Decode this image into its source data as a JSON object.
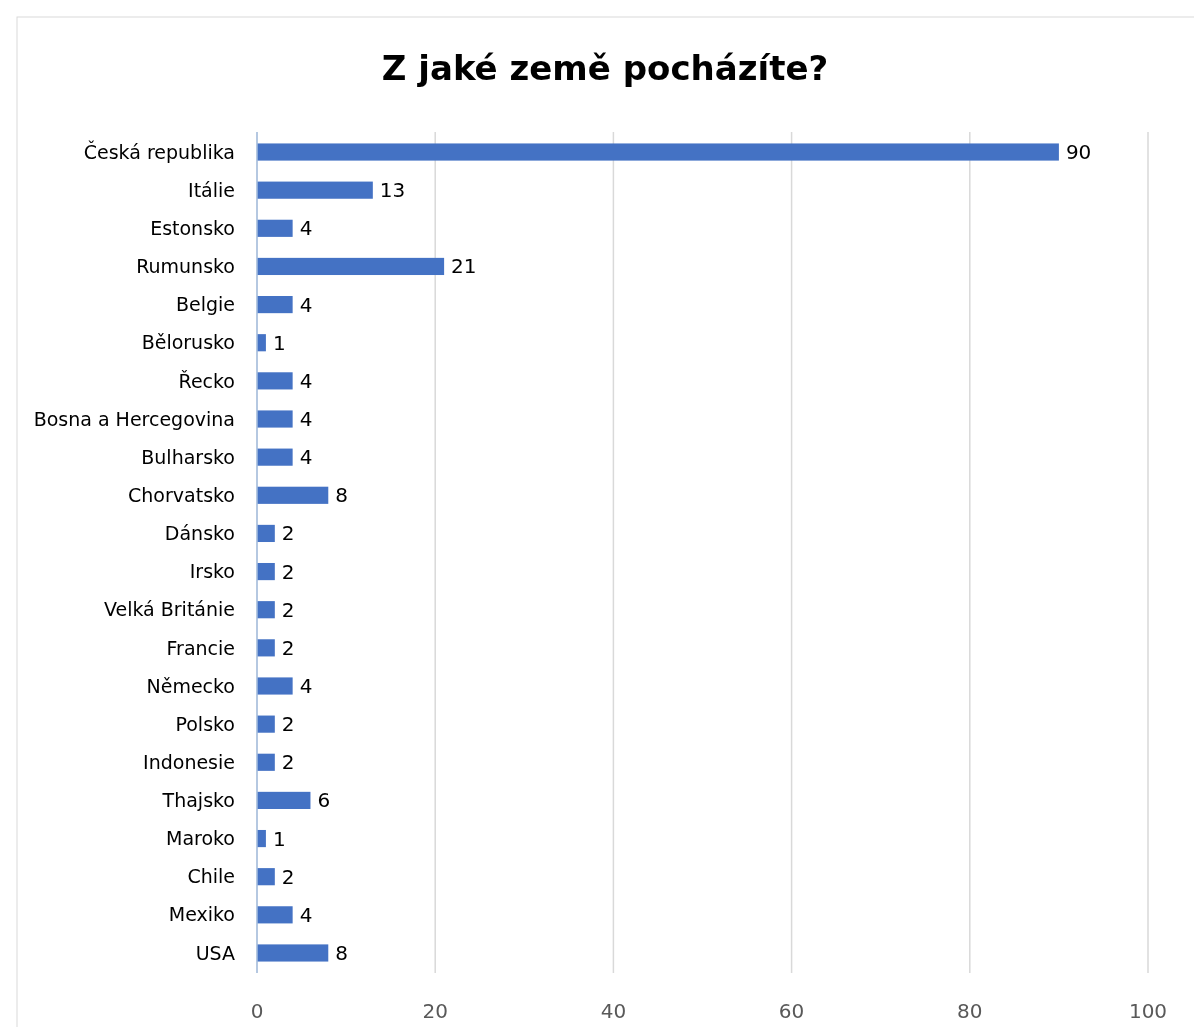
{
  "chart_data": {
    "type": "bar",
    "orientation": "horizontal",
    "title": "Z jaké země pocházíte?",
    "categories": [
      "Česká republika",
      "Itálie",
      "Estonsko",
      "Rumunsko",
      "Belgie",
      "Bělorusko",
      "Řecko",
      "Bosna a Hercegovina",
      "Bulharsko",
      "Chorvatsko",
      "Dánsko",
      "Irsko",
      "Velká Británie",
      "Francie",
      "Německo",
      "Polsko",
      "Indonesie",
      "Thajsko",
      "Maroko",
      "Chile",
      "Mexiko",
      "USA"
    ],
    "values": [
      90,
      13,
      4,
      21,
      4,
      1,
      4,
      4,
      4,
      8,
      2,
      2,
      2,
      2,
      4,
      2,
      2,
      6,
      1,
      2,
      4,
      8
    ],
    "color": "#4472c4",
    "xlim": [
      0,
      100
    ],
    "xticks": [
      0,
      20,
      40,
      60,
      80,
      100
    ],
    "grid": "x",
    "data_labels": true
  }
}
